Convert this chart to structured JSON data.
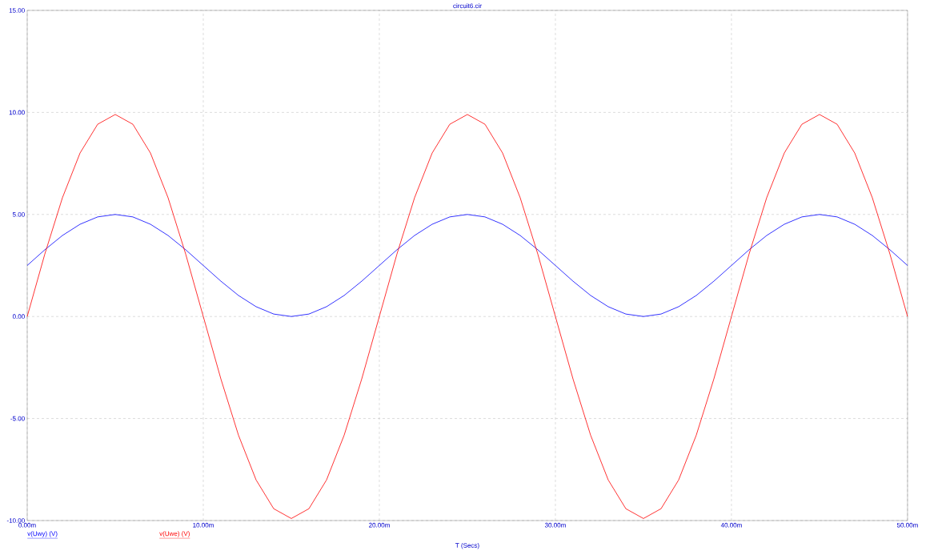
{
  "chart_data": {
    "type": "line",
    "title": "circuit6.cir",
    "xlabel": "T (Secs)",
    "x": [
      0,
      1,
      2,
      3,
      4,
      5,
      6,
      7,
      8,
      9,
      10,
      11,
      12,
      13,
      14,
      15,
      16,
      17,
      18,
      19,
      20,
      21,
      22,
      23,
      24,
      25,
      26,
      27,
      28,
      29,
      30,
      31,
      32,
      33,
      34,
      35,
      36,
      37,
      38,
      39,
      40,
      41,
      42,
      43,
      44,
      45,
      46,
      47,
      48,
      49,
      50
    ],
    "series": [
      {
        "name": "v(Uwy) (V)",
        "color": "#0000ff",
        "values": [
          2.5,
          3.27,
          3.97,
          4.52,
          4.88,
          5,
          4.88,
          4.52,
          3.97,
          3.27,
          2.5,
          1.73,
          1.03,
          0.48,
          0.12,
          0,
          0.12,
          0.48,
          1.03,
          1.73,
          2.5,
          3.27,
          3.97,
          4.52,
          4.88,
          5,
          4.88,
          4.52,
          3.97,
          3.27,
          2.5,
          1.73,
          1.03,
          0.48,
          0.12,
          0,
          0.12,
          0.48,
          1.03,
          1.73,
          2.5,
          3.27,
          3.97,
          4.52,
          4.88,
          5,
          4.88,
          4.52,
          3.97,
          3.27,
          2.5
        ]
      },
      {
        "name": "v(Uwe) (V)",
        "color": "#ff0000",
        "values": [
          0,
          3.06,
          5.82,
          8.01,
          9.42,
          9.9,
          9.42,
          8.01,
          5.82,
          3.06,
          0,
          -3.06,
          -5.82,
          -8.01,
          -9.42,
          -9.9,
          -9.42,
          -8.01,
          -5.82,
          -3.06,
          0,
          3.06,
          5.82,
          8.01,
          9.42,
          9.9,
          9.42,
          8.01,
          5.82,
          3.06,
          0,
          -3.06,
          -5.82,
          -8.01,
          -9.42,
          -9.9,
          -9.42,
          -8.01,
          -5.82,
          -3.06,
          0,
          3.06,
          5.82,
          8.01,
          9.42,
          9.9,
          9.42,
          8.01,
          5.82,
          3.06,
          0
        ]
      }
    ],
    "xlim": [
      0,
      50
    ],
    "ylim": [
      -10,
      15
    ],
    "xticks": [
      {
        "value": 0,
        "label": "0.00m"
      },
      {
        "value": 10,
        "label": "10.00m"
      },
      {
        "value": 20,
        "label": "20.00m"
      },
      {
        "value": 30,
        "label": "30.00m"
      },
      {
        "value": 40,
        "label": "40.00m"
      },
      {
        "value": 50,
        "label": "50.00m"
      }
    ],
    "yticks": [
      {
        "value": -10,
        "label": "-10.00"
      },
      {
        "value": -5,
        "label": "-5.00"
      },
      {
        "value": 0,
        "label": "0.00"
      },
      {
        "value": 5,
        "label": "5.00"
      },
      {
        "value": 10,
        "label": "10.00"
      },
      {
        "value": 15,
        "label": "15.00"
      }
    ],
    "grid": true,
    "legend": "bottom left",
    "marker": "none",
    "line_style": "solid"
  }
}
